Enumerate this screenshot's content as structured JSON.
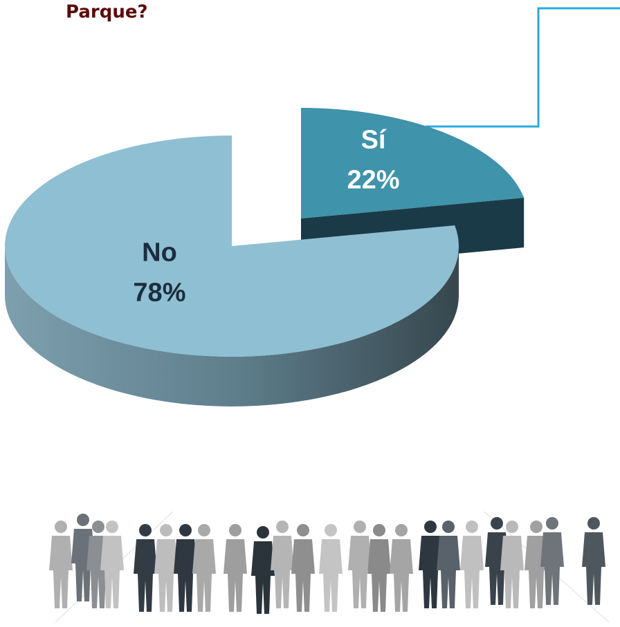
{
  "chart_data": {
    "type": "pie",
    "title": "Parque?",
    "categories": [
      "Sí",
      "No"
    ],
    "values": [
      22,
      78
    ],
    "value_labels": [
      "22%",
      "78%"
    ],
    "colors": [
      "#3f93aa",
      "#8fbfd2"
    ]
  }
}
